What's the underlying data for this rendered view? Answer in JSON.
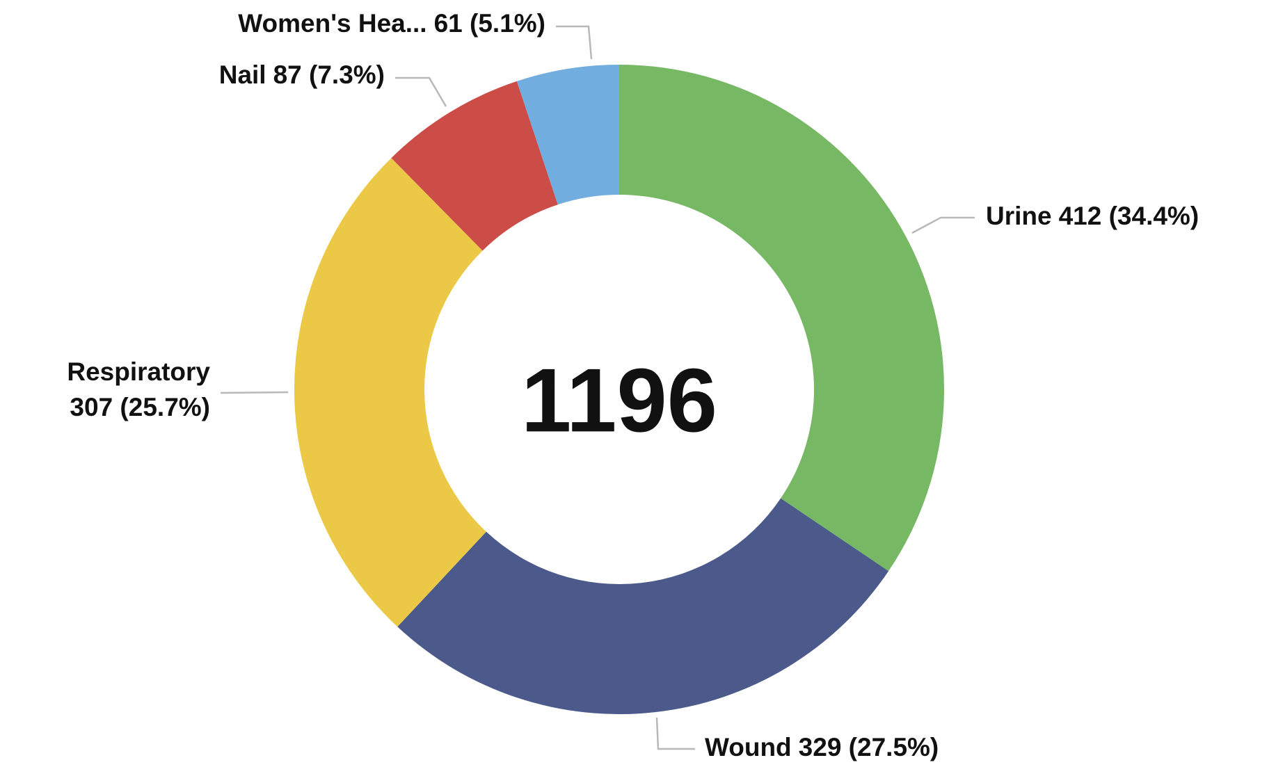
{
  "chart_data": {
    "type": "donut",
    "categories": [
      "Urine",
      "Wound",
      "Respiratory",
      "Nail",
      "Women's Hea..."
    ],
    "values": [
      412,
      329,
      307,
      87,
      61
    ],
    "value_labels": [
      "412 (34.4%)",
      "329 (27.5%)",
      "307 (25.7%)",
      "87 (7.3%)",
      "61 (5.1%)"
    ],
    "colors": [
      "#76b863",
      "#4b5a8a",
      "#ebc846",
      "#cc4c48",
      "#72ade0"
    ],
    "total": 1196
  }
}
